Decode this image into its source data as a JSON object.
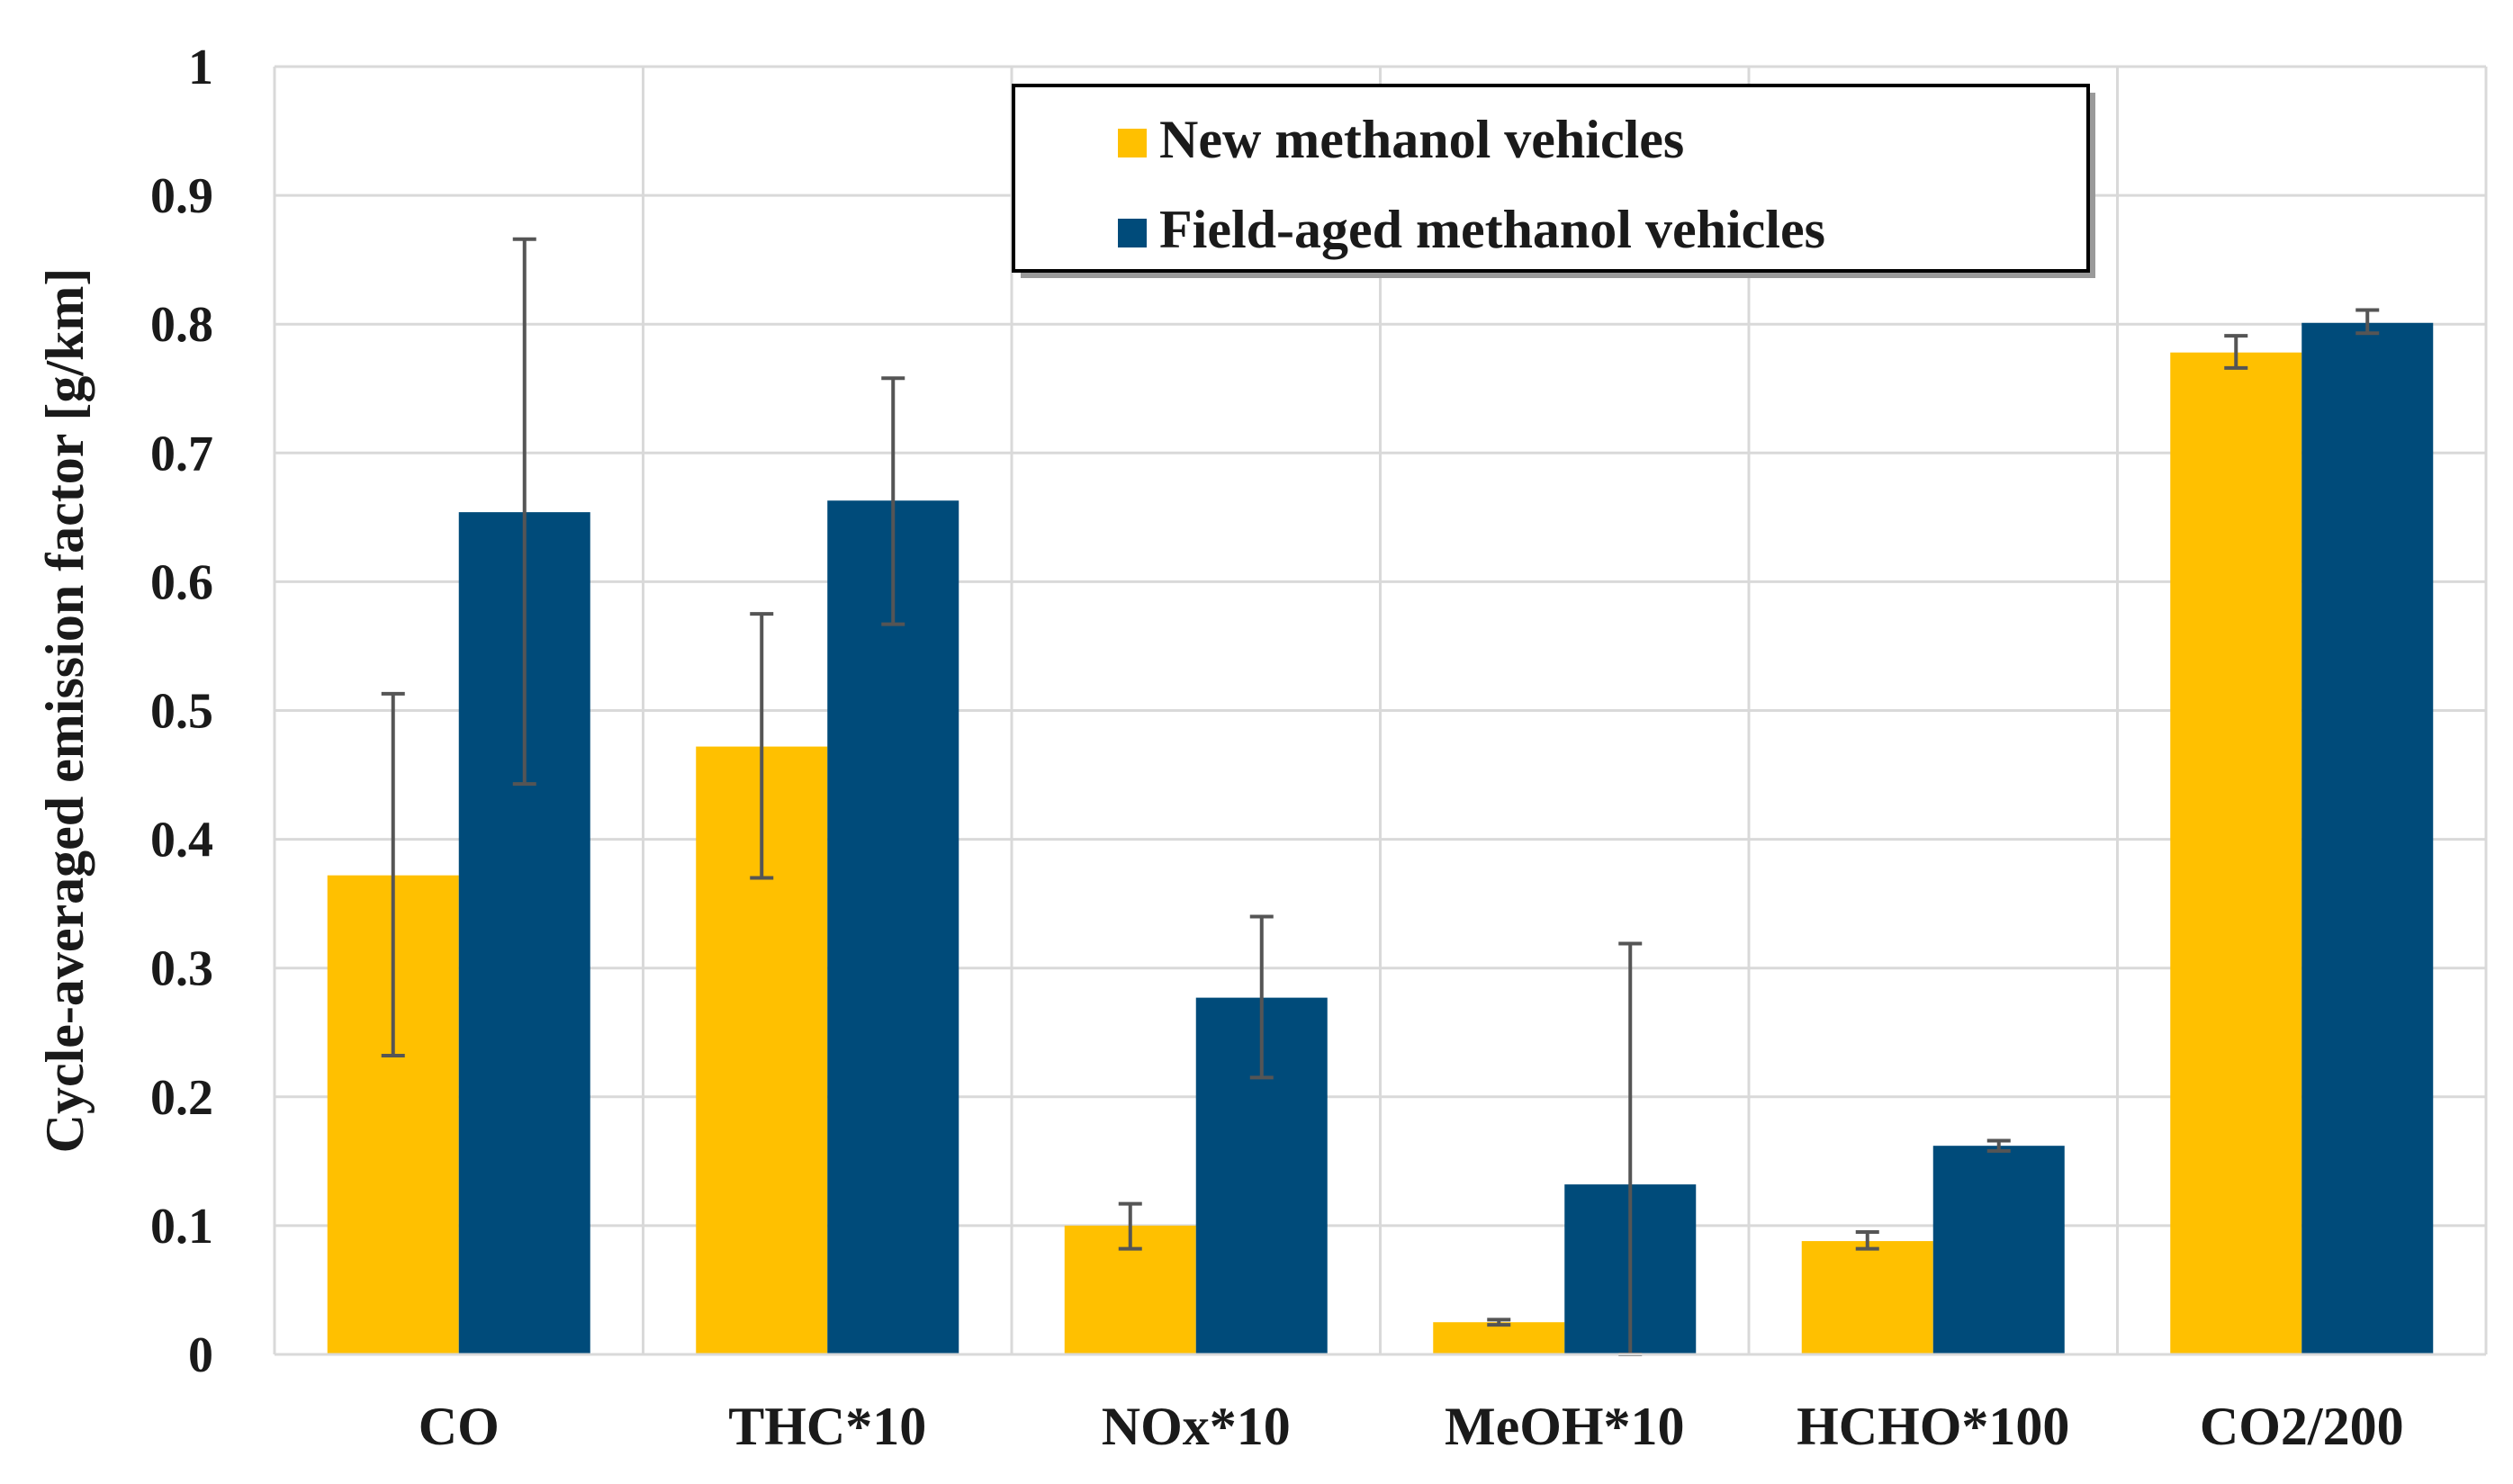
{
  "chart_data": {
    "type": "bar",
    "title": "",
    "xlabel": "",
    "ylabel": "Cycle-averaged emission factor [g/km]",
    "ylim": [
      0,
      1
    ],
    "yticks": [
      "0",
      "0.1",
      "0.2",
      "0.3",
      "0.4",
      "0.5",
      "0.6",
      "0.7",
      "0.8",
      "0.9",
      "1"
    ],
    "categories": [
      "CO",
      "THC*10",
      "NOx*10",
      "MeOH*10",
      "HCHO*100",
      "CO2/200"
    ],
    "grid": true,
    "legend_position": "top-center",
    "series": [
      {
        "name": "New methanol vehicles",
        "color": "#FFC000",
        "values": [
          0.372,
          0.472,
          0.1,
          0.025,
          0.088,
          0.778
        ],
        "err_low": [
          0.232,
          0.37,
          0.082,
          0.023,
          0.082,
          0.766
        ],
        "err_high": [
          0.513,
          0.575,
          0.117,
          0.027,
          0.095,
          0.791
        ]
      },
      {
        "name": "Field-aged methanol vehicles",
        "color": "#004B7A",
        "values": [
          0.654,
          0.663,
          0.277,
          0.132,
          0.162,
          0.801
        ],
        "err_low": [
          0.443,
          0.567,
          0.215,
          0.0,
          0.158,
          0.793
        ],
        "err_high": [
          0.866,
          0.758,
          0.34,
          0.319,
          0.166,
          0.811
        ]
      }
    ]
  }
}
